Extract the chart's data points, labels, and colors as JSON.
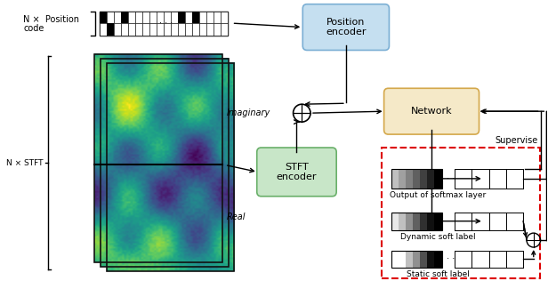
{
  "fig_width": 6.16,
  "fig_height": 3.34,
  "bg_color": "#ffffff",
  "position_code_label": "N × \nPosition\ncode",
  "n_stft_label": "N × STFT",
  "imaginary_label": "Imaginary",
  "real_label": "Real",
  "position_encoder_label": "Position\nencoder",
  "stft_encoder_label": "STFT\nencoder",
  "network_label": "Network",
  "supervise_label": "Supervise",
  "softmax_label": "Output of softmax layer",
  "dynamic_label": "Dynamic soft label",
  "static_label": "Static soft label",
  "pos_encoder_box_color": "#c5dff0",
  "pos_encoder_box_edge": "#7bafd4",
  "network_box_color": "#f5e9c8",
  "network_box_edge": "#d4a84b",
  "stft_encoder_box_color": "#c8e6c8",
  "stft_encoder_box_edge": "#6ab06a",
  "supervise_dashed_color": "#dd0000"
}
